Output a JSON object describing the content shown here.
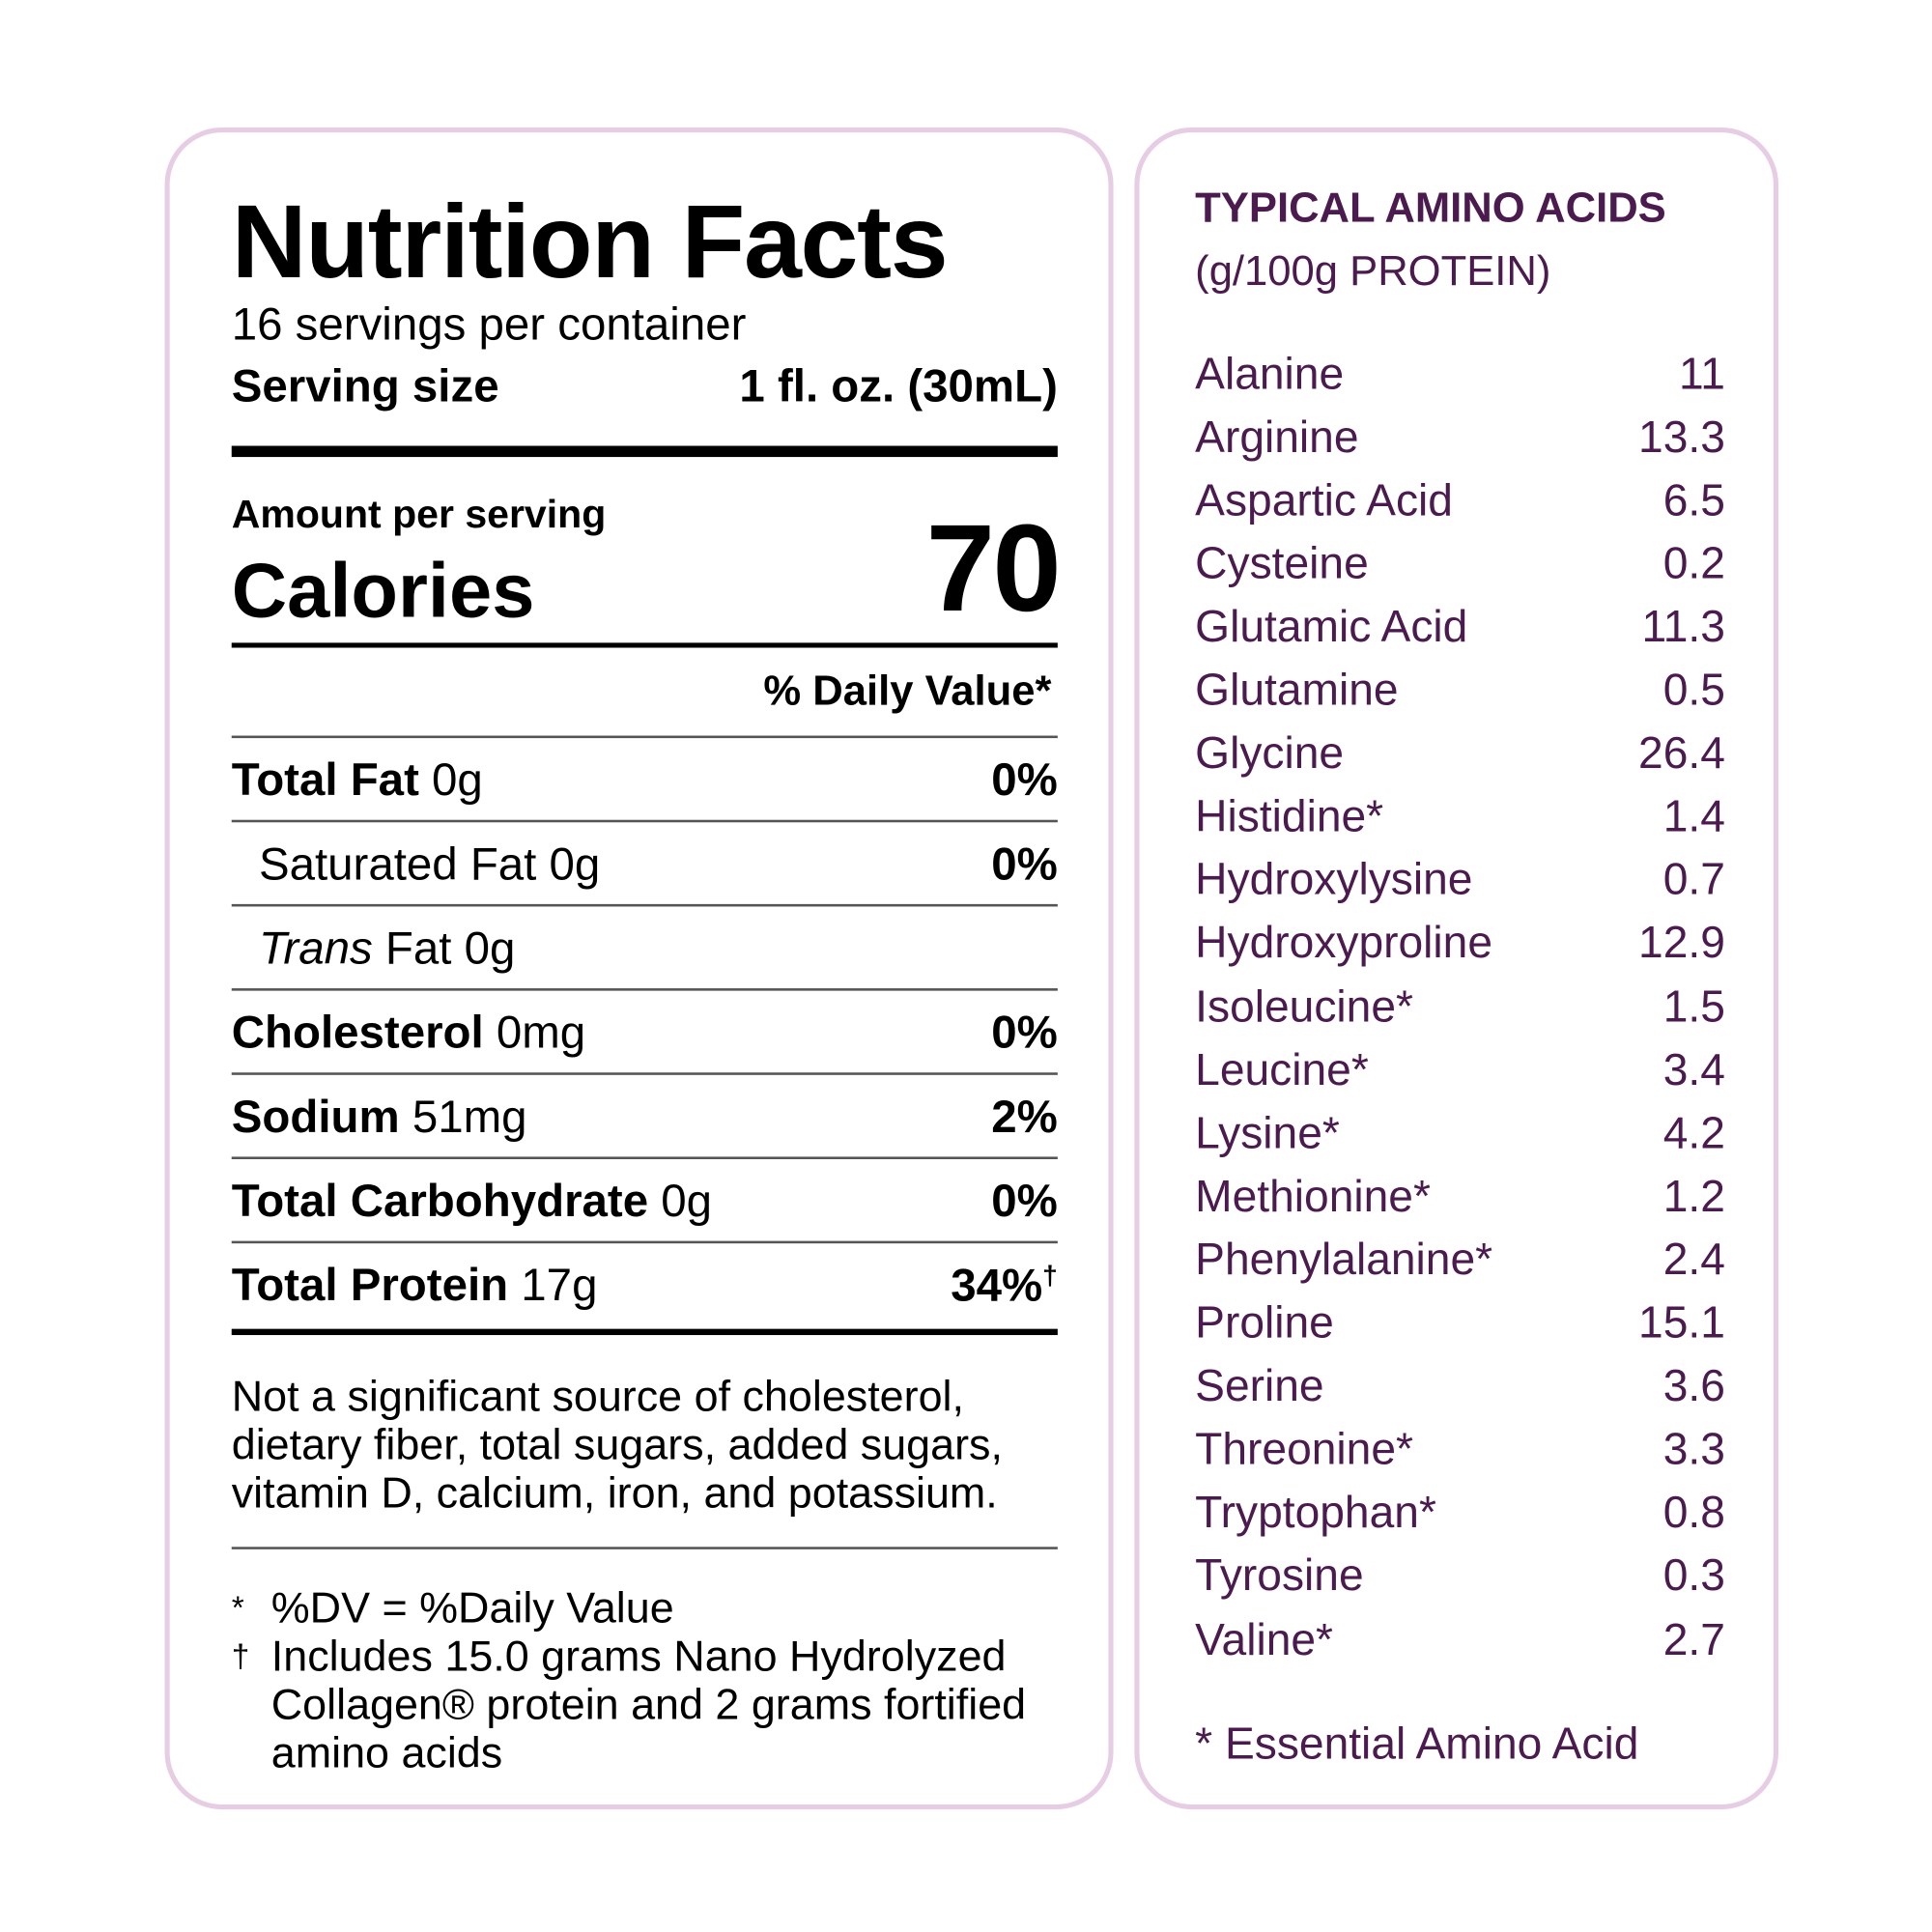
{
  "colors": {
    "border": "#e7cde4",
    "amino_text": "#4b1a4e"
  },
  "nutrition": {
    "title": "Nutrition Facts",
    "servings": "16 servings per container",
    "serving_size_label": "Serving size",
    "serving_size_value": "1 fl. oz. (30mL)",
    "amount_per_serving": "Amount per serving",
    "calories_label": "Calories",
    "calories_value": "70",
    "daily_value_header": "% Daily Value*",
    "rows": [
      {
        "name": "Total Fat",
        "amount": "0g",
        "dv": "0%",
        "bold": true
      },
      {
        "name": "Saturated Fat",
        "amount": "0g",
        "dv": "0%",
        "bold": false
      },
      {
        "name": "Trans",
        "name_rest": "Fat",
        "amount": "0g",
        "dv": "",
        "bold": false
      },
      {
        "name": "Cholesterol",
        "amount": "0mg",
        "dv": "0%",
        "bold": true
      },
      {
        "name": "Sodium",
        "amount": "51mg",
        "dv": "2%",
        "bold": true
      },
      {
        "name": "Total Carbohydrate",
        "amount": "0g",
        "dv": "0%",
        "bold": true
      },
      {
        "name": "Total Protein",
        "amount": "17g",
        "dv": "34%",
        "dv_mark": "†",
        "bold": true
      }
    ],
    "not_significant": "Not a significant source of cholesterol, dietary fiber, total sugars, added sugars, vitamin D, calcium, iron, and potassium.",
    "footnotes": [
      {
        "mark": "*",
        "text": "%DV = %Daily Value"
      },
      {
        "mark": "†",
        "text": "Includes 15.0 grams Nano Hydrolyzed Collagen® protein and 2 grams fortified amino acids"
      }
    ]
  },
  "amino": {
    "title": "TYPICAL AMINO ACIDS",
    "subtitle": "(g/100g PROTEIN)",
    "items": [
      {
        "name": "Alanine",
        "value": "11"
      },
      {
        "name": "Arginine",
        "value": "13.3"
      },
      {
        "name": "Aspartic Acid",
        "value": "6.5"
      },
      {
        "name": "Cysteine",
        "value": "0.2"
      },
      {
        "name": "Glutamic Acid",
        "value": "11.3"
      },
      {
        "name": "Glutamine",
        "value": "0.5"
      },
      {
        "name": "Glycine",
        "value": "26.4"
      },
      {
        "name": "Histidine*",
        "value": "1.4"
      },
      {
        "name": "Hydroxylysine",
        "value": "0.7"
      },
      {
        "name": "Hydroxyproline",
        "value": "12.9"
      },
      {
        "name": "Isoleucine*",
        "value": "1.5"
      },
      {
        "name": "Leucine*",
        "value": "3.4"
      },
      {
        "name": "Lysine*",
        "value": "4.2"
      },
      {
        "name": "Methionine*",
        "value": "1.2"
      },
      {
        "name": "Phenylalanine*",
        "value": "2.4"
      },
      {
        "name": "Proline",
        "value": "15.1"
      },
      {
        "name": "Serine",
        "value": "3.6"
      },
      {
        "name": "Threonine*",
        "value": "3.3"
      },
      {
        "name": "Tryptophan*",
        "value": "0.8"
      },
      {
        "name": "Tyrosine",
        "value": "0.3"
      },
      {
        "name": "Valine*",
        "value": "2.7"
      }
    ],
    "footer": "* Essential Amino Acid"
  }
}
